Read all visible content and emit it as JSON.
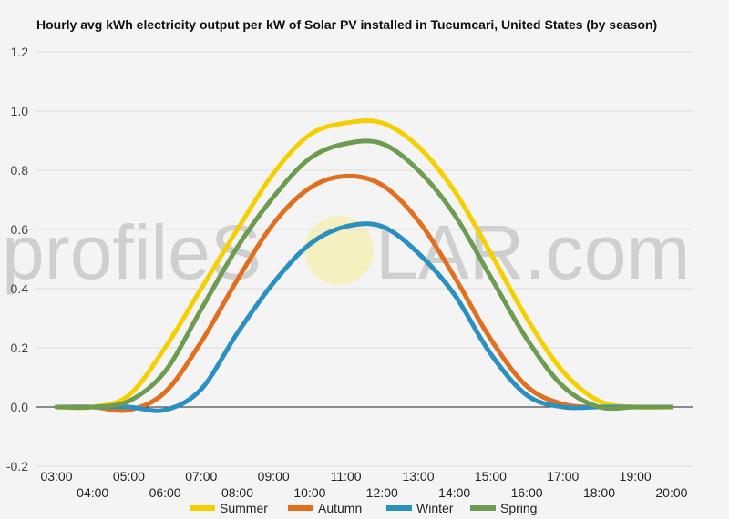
{
  "title": "Hourly avg kWh electricity output per kW of Solar PV installed in Tucumcari, United States (by season)",
  "watermark": {
    "left": "profileS",
    "right": "LAR.com"
  },
  "chart_data": {
    "type": "line",
    "title": "Hourly avg kWh electricity output per kW of Solar PV installed in Tucumcari, United States (by season)",
    "xlabel": "",
    "ylabel": "",
    "ylim": [
      -0.2,
      1.2
    ],
    "yticks": [
      -0.2,
      0.0,
      0.2,
      0.4,
      0.6,
      0.8,
      1.0,
      1.2
    ],
    "ytick_labels": [
      "-0.2",
      "0.0",
      "0.2",
      "0.4",
      "0.6",
      "0.8",
      "1.0",
      "1.2"
    ],
    "x": [
      "03:00",
      "04:00",
      "05:00",
      "06:00",
      "07:00",
      "08:00",
      "09:00",
      "10:00",
      "11:00",
      "12:00",
      "13:00",
      "14:00",
      "15:00",
      "16:00",
      "17:00",
      "18:00",
      "19:00",
      "20:00"
    ],
    "grid": true,
    "legend_position": "bottom",
    "series": [
      {
        "name": "Summer",
        "color": "#f5d000",
        "values": [
          0.0,
          0.0,
          0.04,
          0.2,
          0.4,
          0.6,
          0.79,
          0.92,
          0.96,
          0.96,
          0.88,
          0.73,
          0.52,
          0.3,
          0.12,
          0.02,
          0.0,
          0.0
        ]
      },
      {
        "name": "Autumn",
        "color": "#e07020",
        "values": [
          0.0,
          0.0,
          -0.01,
          0.05,
          0.22,
          0.43,
          0.62,
          0.74,
          0.78,
          0.75,
          0.63,
          0.44,
          0.23,
          0.07,
          0.01,
          0.0,
          0.0,
          0.0
        ]
      },
      {
        "name": "Winter",
        "color": "#2a90c0",
        "values": [
          0.0,
          0.0,
          0.0,
          -0.01,
          0.06,
          0.25,
          0.42,
          0.55,
          0.61,
          0.61,
          0.52,
          0.38,
          0.18,
          0.04,
          0.0,
          0.0,
          0.0,
          0.0
        ]
      },
      {
        "name": "Spring",
        "color": "#6d9b50",
        "values": [
          0.0,
          0.0,
          0.02,
          0.12,
          0.33,
          0.54,
          0.71,
          0.84,
          0.89,
          0.89,
          0.8,
          0.65,
          0.44,
          0.23,
          0.07,
          0.0,
          0.0,
          0.0
        ]
      }
    ]
  }
}
